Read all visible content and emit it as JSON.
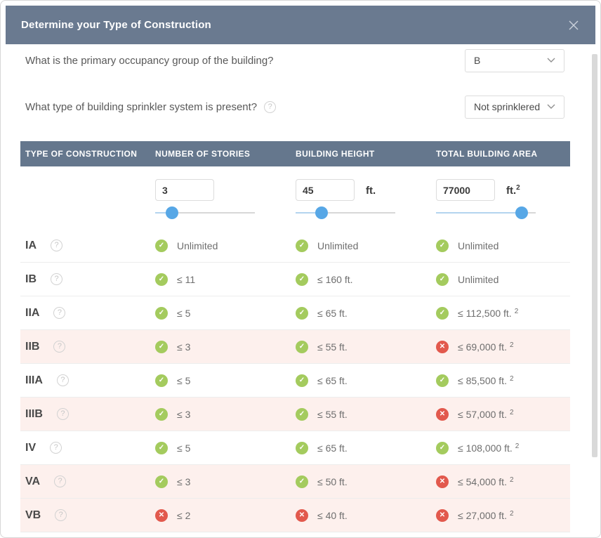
{
  "colors": {
    "modal_header_bg": "#6A7A90",
    "table_header_bg": "#65778D",
    "pass_green": "#A4CB5E",
    "fail_red": "#E2594D",
    "slider_blue": "#57A7E6",
    "highlight_row_bg": "#FDF0ED"
  },
  "icons": {
    "pass": "✓",
    "fail": "✕",
    "help": "?"
  },
  "modal": {
    "title": "Determine your Type of Construction"
  },
  "questions": [
    {
      "label": "What is the primary occupancy group of the building?",
      "selected": "B"
    },
    {
      "label": "What type of building sprinkler system is present?",
      "selected": "Not sprinklered"
    }
  ],
  "table": {
    "headers": [
      "Type of Construction",
      "Number of Stories",
      "Building Height",
      "Total Building Area"
    ],
    "inputs": {
      "stories": {
        "value": "3",
        "unit": "",
        "unit_sup": "",
        "slider_percent": 17
      },
      "height": {
        "value": "45",
        "unit": "ft.",
        "unit_sup": "",
        "slider_percent": 26
      },
      "area": {
        "value": "77000",
        "unit": "ft.",
        "unit_sup": "2",
        "slider_percent": 86
      }
    },
    "rows": [
      {
        "label": "IA",
        "highlight": false,
        "cells": [
          {
            "status": "pass",
            "text": "Unlimited",
            "sup": ""
          },
          {
            "status": "pass",
            "text": "Unlimited",
            "sup": ""
          },
          {
            "status": "pass",
            "text": "Unlimited",
            "sup": ""
          }
        ]
      },
      {
        "label": "IB",
        "highlight": false,
        "cells": [
          {
            "status": "pass",
            "text": "≤ 11",
            "sup": ""
          },
          {
            "status": "pass",
            "text": "≤ 160 ft.",
            "sup": ""
          },
          {
            "status": "pass",
            "text": "Unlimited",
            "sup": ""
          }
        ]
      },
      {
        "label": "IIA",
        "highlight": false,
        "cells": [
          {
            "status": "pass",
            "text": "≤ 5",
            "sup": ""
          },
          {
            "status": "pass",
            "text": "≤ 65 ft.",
            "sup": ""
          },
          {
            "status": "pass",
            "text": "≤ 112,500 ft.",
            "sup": "2"
          }
        ]
      },
      {
        "label": "IIB",
        "highlight": true,
        "cells": [
          {
            "status": "pass",
            "text": "≤ 3",
            "sup": ""
          },
          {
            "status": "pass",
            "text": "≤ 55 ft.",
            "sup": ""
          },
          {
            "status": "fail",
            "text": "≤ 69,000 ft.",
            "sup": "2"
          }
        ]
      },
      {
        "label": "IIIA",
        "highlight": false,
        "cells": [
          {
            "status": "pass",
            "text": "≤ 5",
            "sup": ""
          },
          {
            "status": "pass",
            "text": "≤ 65 ft.",
            "sup": ""
          },
          {
            "status": "pass",
            "text": "≤ 85,500 ft.",
            "sup": "2"
          }
        ]
      },
      {
        "label": "IIIB",
        "highlight": true,
        "cells": [
          {
            "status": "pass",
            "text": "≤ 3",
            "sup": ""
          },
          {
            "status": "pass",
            "text": "≤ 55 ft.",
            "sup": ""
          },
          {
            "status": "fail",
            "text": "≤ 57,000 ft.",
            "sup": "2"
          }
        ]
      },
      {
        "label": "IV",
        "highlight": false,
        "cells": [
          {
            "status": "pass",
            "text": "≤ 5",
            "sup": ""
          },
          {
            "status": "pass",
            "text": "≤ 65 ft.",
            "sup": ""
          },
          {
            "status": "pass",
            "text": "≤ 108,000 ft.",
            "sup": "2"
          }
        ]
      },
      {
        "label": "VA",
        "highlight": true,
        "cells": [
          {
            "status": "pass",
            "text": "≤ 3",
            "sup": ""
          },
          {
            "status": "pass",
            "text": "≤ 50 ft.",
            "sup": ""
          },
          {
            "status": "fail",
            "text": "≤ 54,000 ft.",
            "sup": "2"
          }
        ]
      },
      {
        "label": "VB",
        "highlight": true,
        "cells": [
          {
            "status": "fail",
            "text": "≤ 2",
            "sup": ""
          },
          {
            "status": "fail",
            "text": "≤ 40 ft.",
            "sup": ""
          },
          {
            "status": "fail",
            "text": "≤ 27,000 ft.",
            "sup": "2"
          }
        ]
      }
    ]
  }
}
